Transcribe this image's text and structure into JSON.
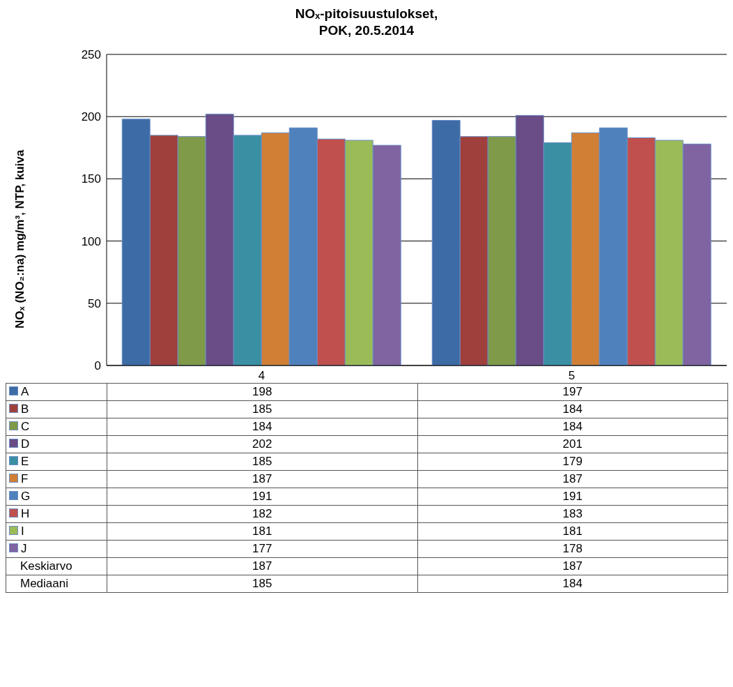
{
  "chart_data": {
    "type": "bar",
    "title": "NOₓ-pitoisuustulokset,\nPOK, 20.5.2014",
    "ylabel": "NOₓ (NO₂:na) mg/m³, NTP, kuiva",
    "categories": [
      "4",
      "5"
    ],
    "series": [
      {
        "name": "A",
        "color": "#3d6ba5",
        "values": [
          198,
          197
        ]
      },
      {
        "name": "B",
        "color": "#a0403c",
        "values": [
          185,
          184
        ]
      },
      {
        "name": "C",
        "color": "#7f9a48",
        "values": [
          184,
          184
        ]
      },
      {
        "name": "D",
        "color": "#6a4c86",
        "values": [
          202,
          201
        ]
      },
      {
        "name": "E",
        "color": "#3a8fa3",
        "values": [
          185,
          179
        ]
      },
      {
        "name": "F",
        "color": "#d07f35",
        "values": [
          187,
          187
        ]
      },
      {
        "name": "G",
        "color": "#4f81bd",
        "values": [
          191,
          191
        ]
      },
      {
        "name": "H",
        "color": "#c0504d",
        "values": [
          182,
          183
        ]
      },
      {
        "name": "I",
        "color": "#9bbb59",
        "values": [
          181,
          181
        ]
      },
      {
        "name": "J",
        "color": "#8064a2",
        "values": [
          177,
          178
        ]
      }
    ],
    "ylim": [
      0,
      250
    ],
    "yticks": [
      0,
      50,
      100,
      150,
      200,
      250
    ],
    "grid": "y",
    "legend": "bottom",
    "data_labels": true,
    "annotations": [
      "Keskiarvo",
      "187",
      "187",
      "Mediaani",
      "185",
      "184"
    ]
  }
}
